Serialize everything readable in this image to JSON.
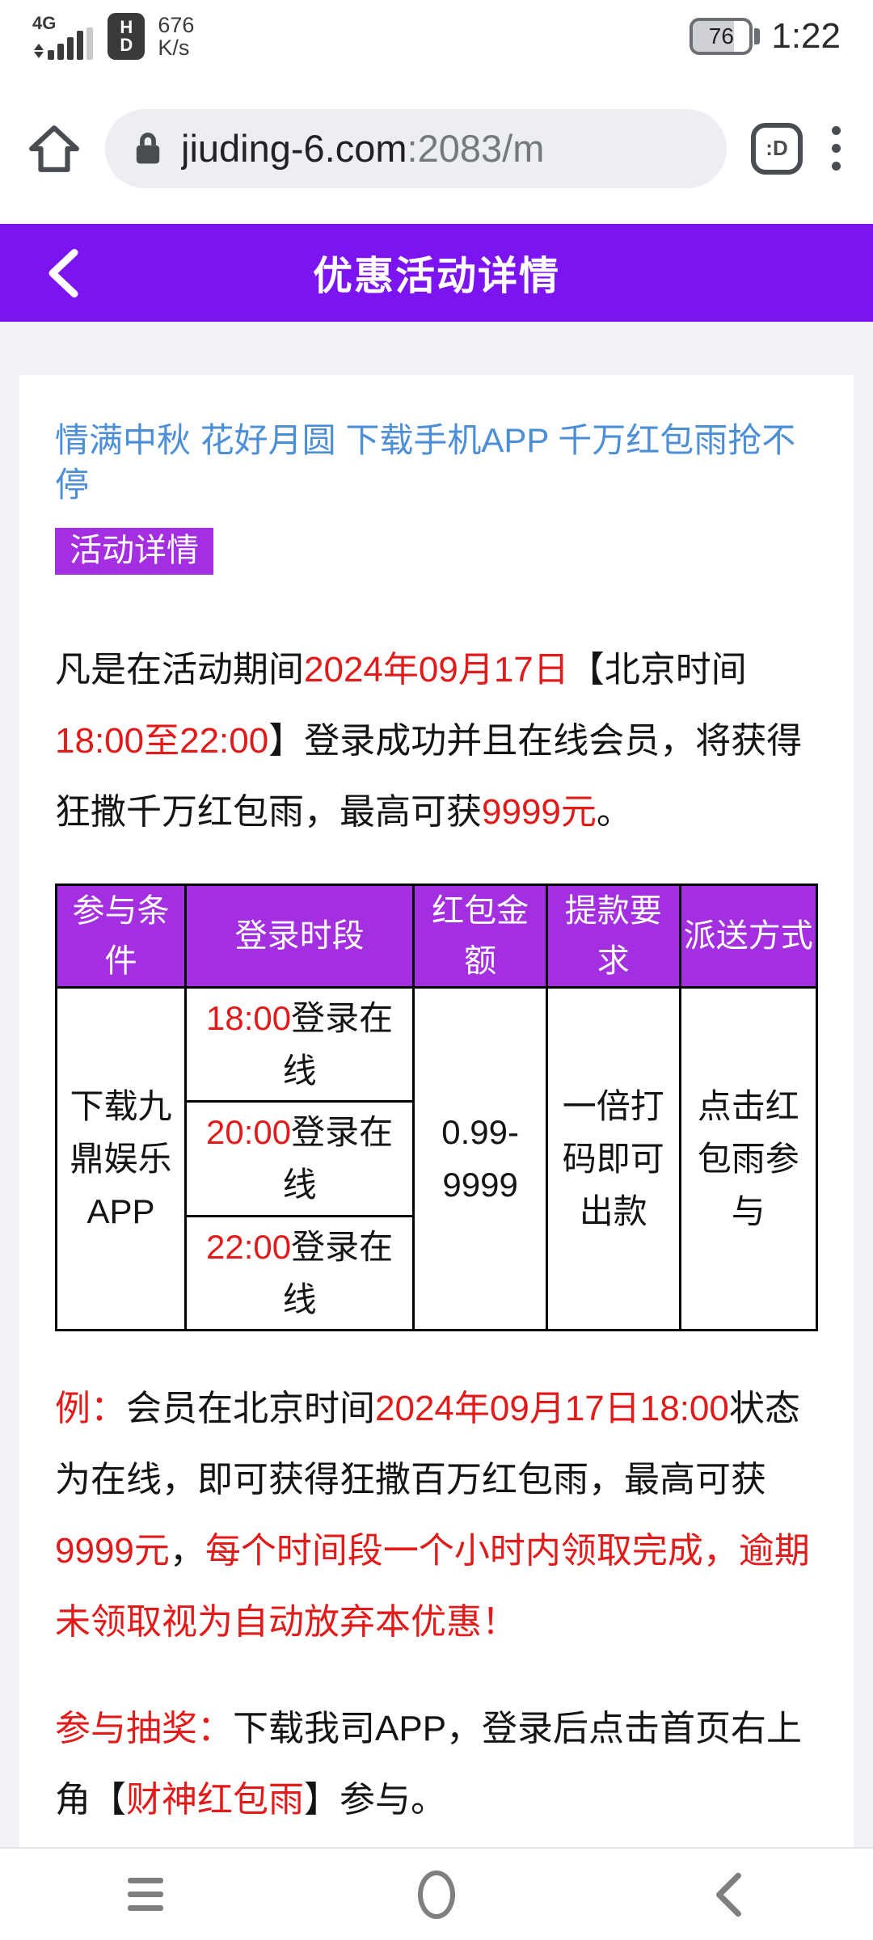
{
  "colors": {
    "header_purple": "#7c13f1",
    "badge_purple": "#a42fe0",
    "accent_red": "#e11a1a",
    "link_blue": "#4d8fd6"
  },
  "status_bar": {
    "network": "4G",
    "volte_badge_top": "H",
    "volte_badge_bottom": "D",
    "speed_value": "676",
    "speed_unit": "K/s",
    "battery_percent": "76",
    "time": "1:22"
  },
  "browser": {
    "url_host": "jiuding-6.com",
    "url_port_path": ":2083/m",
    "tab_count_badge": ":D"
  },
  "header": {
    "title": "优惠活动详情"
  },
  "content": {
    "promo_link": "情满中秋 花好月圆 下载手机APP 千万红包雨抢不停",
    "section_badge": "活动详情",
    "intro_segments": [
      {
        "t": "凡是在活动期间"
      },
      {
        "t": "2024年09月17日",
        "red": true
      },
      {
        "t": "【北京时间"
      },
      {
        "t": "18:00至22:00",
        "red": true
      },
      {
        "t": "】登录成功并且在线会员，将获得狂撒千万红包雨，最高可获"
      },
      {
        "t": "9999元",
        "red": true
      },
      {
        "t": "。"
      }
    ],
    "table": {
      "headers": [
        "参与条件",
        "登录时段",
        "红包金额",
        "提款要求",
        "派送方式"
      ],
      "condition": "下载九鼎娱乐APP",
      "login_rows": [
        [
          {
            "t": "18:00",
            "red": true
          },
          {
            "t": "登录在线"
          }
        ],
        [
          {
            "t": "20:00",
            "red": true
          },
          {
            "t": "登录在线"
          }
        ],
        [
          {
            "t": "22:00",
            "red": true
          },
          {
            "t": "登录在线"
          }
        ]
      ],
      "amount": "0.99-9999",
      "withdraw_requirement": "一倍打码即可出款",
      "delivery_method": "点击红包雨参与"
    },
    "example_segments": [
      {
        "t": "例：",
        "red": true
      },
      {
        "t": "会员在北京时间"
      },
      {
        "t": "2024年09月17日18:00",
        "red": true
      },
      {
        "t": "状态为在线，即可获得狂撒百万红包雨，最高可获"
      },
      {
        "t": "9999元",
        "red": true
      },
      {
        "t": "，"
      },
      {
        "t": "每个时间段一个小时内领取完成，逾期未领取视为自动放弃本优惠！",
        "red": true
      }
    ],
    "join_segments": [
      {
        "t": "参与抽奖：",
        "red": true
      },
      {
        "t": "下载我司APP，登录后点击首页右上角【"
      },
      {
        "t": "财神红包雨",
        "red": true
      },
      {
        "t": "】参与。"
      }
    ]
  }
}
